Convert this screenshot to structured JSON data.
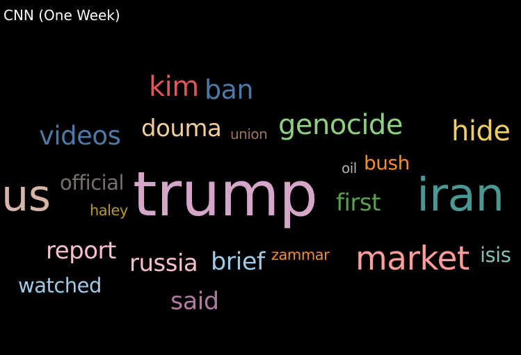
{
  "title": "CNN (One Week)",
  "words": [
    {
      "text": "kim",
      "color": "#e15759"
    },
    {
      "text": "ban",
      "color": "#4e79a7"
    },
    {
      "text": "videos",
      "color": "#4e79a7"
    },
    {
      "text": "douma",
      "color": "#f1ce9a"
    },
    {
      "text": "union",
      "color": "#9c755f"
    },
    {
      "text": "genocide",
      "color": "#8cd17d"
    },
    {
      "text": "hide",
      "color": "#f1ce63"
    },
    {
      "text": "official",
      "color": "#79706e"
    },
    {
      "text": "oil",
      "color": "#bab0ac"
    },
    {
      "text": "bush",
      "color": "#f28e2b"
    },
    {
      "text": "us",
      "color": "#d7b5a6"
    },
    {
      "text": "trump",
      "color": "#d4a6c8"
    },
    {
      "text": "iran",
      "color": "#499894"
    },
    {
      "text": "first",
      "color": "#59a14f"
    },
    {
      "text": "haley",
      "color": "#b6992d"
    },
    {
      "text": "report",
      "color": "#fabfd2"
    },
    {
      "text": "russia",
      "color": "#fabfd2"
    },
    {
      "text": "brief",
      "color": "#a0cbe8"
    },
    {
      "text": "zammar",
      "color": "#f28e2b"
    },
    {
      "text": "market",
      "color": "#ff9d9a"
    },
    {
      "text": "isis",
      "color": "#86bcb6"
    },
    {
      "text": "watched",
      "color": "#a0cbe8"
    },
    {
      "text": "said",
      "color": "#b07aa1"
    }
  ]
}
